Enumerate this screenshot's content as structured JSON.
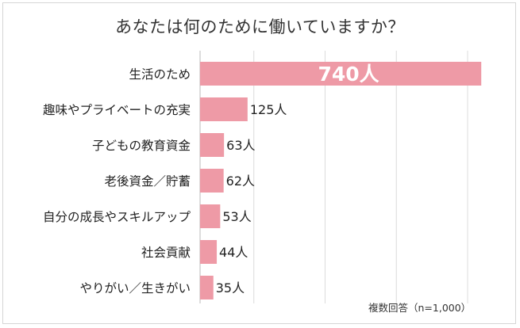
{
  "chart_data": {
    "type": "bar",
    "orientation": "horizontal",
    "title": "あなたは何のために働いていますか？",
    "categories": [
      "生活のため",
      "趣味やプライベートの充実",
      "子どもの教育資金",
      "老後資金／貯蓄",
      "自分の成長やスキルアップ",
      "社会貢献",
      "やりがい／生きがい"
    ],
    "values": [
      740,
      125,
      63,
      62,
      53,
      44,
      35
    ],
    "value_labels": [
      "740人",
      "125人",
      "63人",
      "62人",
      "53人",
      "44人",
      "35人"
    ],
    "xlim": [
      0,
      750
    ],
    "grid": true,
    "bar_color": "#ee9aa6",
    "note": "複数回答（n=1,000）"
  }
}
